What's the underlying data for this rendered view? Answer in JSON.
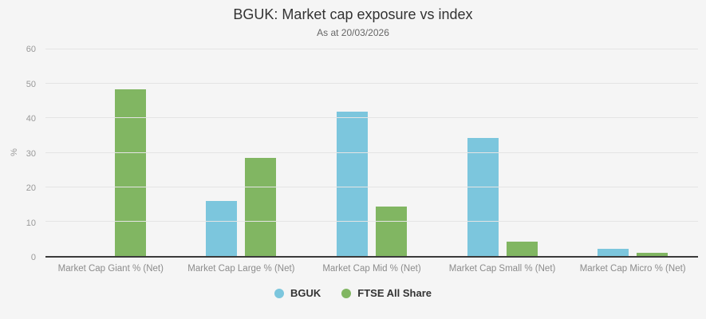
{
  "chart_data": {
    "type": "bar",
    "title": "BGUK: Market cap exposure vs index",
    "subtitle": "As at 20/03/2026",
    "categories": [
      "Market Cap Giant % (Net)",
      "Market Cap Large % (Net)",
      "Market Cap Mid % (Net)",
      "Market Cap Small % (Net)",
      "Market Cap Micro % (Net)"
    ],
    "series": [
      {
        "name": "BGUK",
        "color": "#7cc6dd",
        "values": [
          0,
          16.1,
          41.9,
          34.4,
          2.0
        ]
      },
      {
        "name": "FTSE All Share",
        "color": "#81b662",
        "values": [
          48.5,
          28.6,
          14.3,
          4.2,
          1.0
        ]
      }
    ],
    "xlabel": "",
    "ylabel": "%",
    "ylim": [
      0,
      60
    ],
    "yticks": [
      0,
      10,
      20,
      30,
      40,
      50,
      60
    ],
    "grid": true,
    "legend_position": "bottom"
  },
  "colors": {
    "background": "#f5f5f5",
    "gridline": "#e4e4e4",
    "axis_line": "#3a3a3a",
    "title_text": "#333333",
    "subtitle_text": "#666666",
    "tick_text": "#999999",
    "legend_text": "#333333"
  }
}
